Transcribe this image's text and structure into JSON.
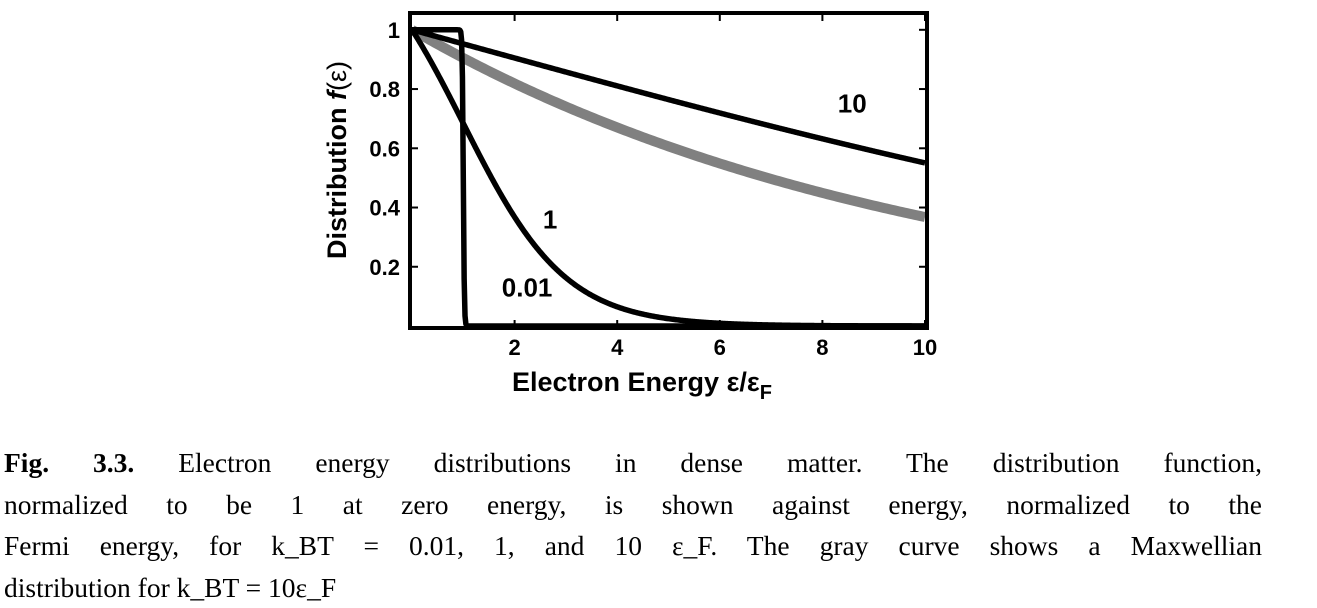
{
  "chart_data": {
    "type": "line",
    "xlabel": "Electron Energy ε/ε",
    "xlabel_sub": "F",
    "ylabel": "Distribution",
    "ylabel_f": "f",
    "ylabel_paren": "(ε)",
    "xlim": [
      0,
      10
    ],
    "ylim": [
      0,
      1.05
    ],
    "x_ticks": [
      2,
      4,
      6,
      8,
      10
    ],
    "x_tick_labels": [
      "2",
      "4",
      "6",
      "8",
      "10"
    ],
    "y_ticks": [
      0.2,
      0.4,
      0.6,
      0.8,
      1
    ],
    "y_tick_labels": [
      "0.2",
      "0.4",
      "0.6",
      "0.8",
      "1"
    ],
    "grid": false,
    "series": [
      {
        "name": "0.01",
        "kT": 0.01,
        "kind": "fermi",
        "color": "#000000",
        "x": [
          0,
          1,
          1.05,
          2,
          4,
          6,
          8,
          10
        ],
        "y": [
          1,
          1,
          0,
          0,
          0,
          0,
          0,
          0
        ]
      },
      {
        "name": "1",
        "kT": 1,
        "kind": "fermi",
        "color": "#000000",
        "x": [
          0,
          1,
          2,
          2.5,
          3,
          4,
          5,
          6,
          8,
          10
        ],
        "y": [
          1,
          0.69,
          0.39,
          0.27,
          0.18,
          0.07,
          0.03,
          0.01,
          0,
          0
        ]
      },
      {
        "name": "10",
        "kT": 10,
        "kind": "fermi",
        "color": "#000000",
        "x": [
          0,
          2,
          4,
          6,
          8,
          10
        ],
        "y": [
          1,
          0.91,
          0.82,
          0.74,
          0.65,
          0.56
        ]
      },
      {
        "name": "",
        "kT": 10,
        "kind": "maxwellian",
        "color": "#808080",
        "x": [
          0,
          2,
          4,
          6,
          8,
          10
        ],
        "y": [
          1,
          0.8,
          0.64,
          0.52,
          0.44,
          0.37
        ]
      }
    ],
    "curve_labels": [
      {
        "text": "10",
        "x": 8.3,
        "y": 0.72
      },
      {
        "text": "1",
        "x": 2.55,
        "y": 0.33
      },
      {
        "text": "0.01",
        "x": 1.75,
        "y": 0.1
      }
    ]
  },
  "caption": {
    "fig_label": "Fig. 3.3.",
    "line1": "Electron energy distributions in dense matter. The distribution function,",
    "line2": "normalized to be 1 at zero energy, is shown against energy, normalized to the",
    "line3": "Fermi energy, for k_BT = 0.01, 1, and 10 ε_F. The gray curve shows a Maxwellian",
    "line4": "distribution for k_BT = 10ε_F"
  }
}
